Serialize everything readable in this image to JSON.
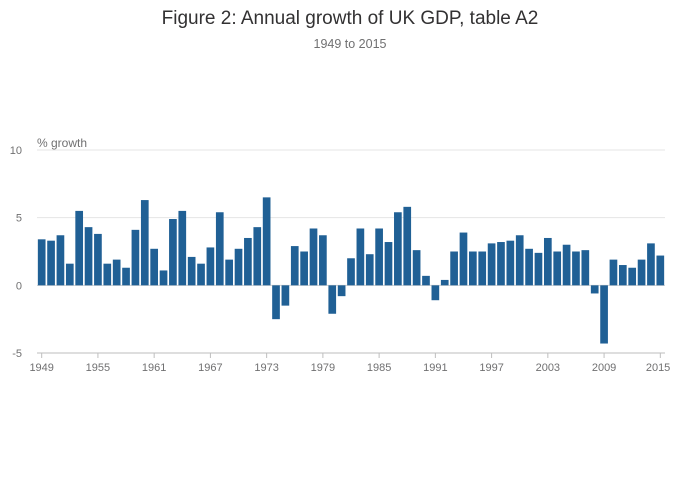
{
  "header": {
    "title": "Figure 2: Annual growth of UK GDP, table A2",
    "subtitle": "1949 to 2015"
  },
  "colors": {
    "bar": "#206095",
    "grid": "#e5e5e5",
    "axis": "#bebebe",
    "text": "#707071"
  },
  "chart_data": {
    "type": "bar",
    "title": "Figure 2: Annual growth of UK GDP, table A2",
    "subtitle": "1949 to 2015",
    "ylabel": "% growth",
    "xlabel": "",
    "ylim": [
      -5,
      10
    ],
    "yticks": [
      -5,
      0,
      5,
      10
    ],
    "xticks": [
      "1949",
      "1955",
      "1961",
      "1967",
      "1973",
      "1979",
      "1985",
      "1991",
      "1997",
      "2003",
      "2009",
      "2015"
    ],
    "grid": true,
    "legend": "none",
    "categories": [
      "1949",
      "1950",
      "1951",
      "1952",
      "1953",
      "1954",
      "1955",
      "1956",
      "1957",
      "1958",
      "1959",
      "1960",
      "1961",
      "1962",
      "1963",
      "1964",
      "1965",
      "1966",
      "1967",
      "1968",
      "1969",
      "1970",
      "1971",
      "1972",
      "1973",
      "1974",
      "1975",
      "1976",
      "1977",
      "1978",
      "1979",
      "1980",
      "1981",
      "1982",
      "1983",
      "1984",
      "1985",
      "1986",
      "1987",
      "1988",
      "1989",
      "1990",
      "1991",
      "1992",
      "1993",
      "1994",
      "1995",
      "1996",
      "1997",
      "1998",
      "1999",
      "2000",
      "2001",
      "2002",
      "2003",
      "2004",
      "2005",
      "2006",
      "2007",
      "2008",
      "2009",
      "2010",
      "2011",
      "2012",
      "2013",
      "2014",
      "2015"
    ],
    "values": [
      3.4,
      3.3,
      3.7,
      1.6,
      5.5,
      4.3,
      3.8,
      1.6,
      1.9,
      1.3,
      4.1,
      6.3,
      2.7,
      1.1,
      4.9,
      5.5,
      2.1,
      1.6,
      2.8,
      5.4,
      1.9,
      2.7,
      3.5,
      4.3,
      6.5,
      -2.5,
      -1.5,
      2.9,
      2.5,
      4.2,
      3.7,
      -2.1,
      -0.8,
      2.0,
      4.2,
      2.3,
      4.2,
      3.2,
      5.4,
      5.8,
      2.6,
      0.7,
      -1.1,
      0.4,
      2.5,
      3.9,
      2.5,
      2.5,
      3.1,
      3.2,
      3.3,
      3.7,
      2.7,
      2.4,
      3.5,
      2.5,
      3.0,
      2.5,
      2.6,
      -0.6,
      -4.3,
      1.9,
      1.5,
      1.3,
      1.9,
      3.1,
      2.2
    ]
  }
}
